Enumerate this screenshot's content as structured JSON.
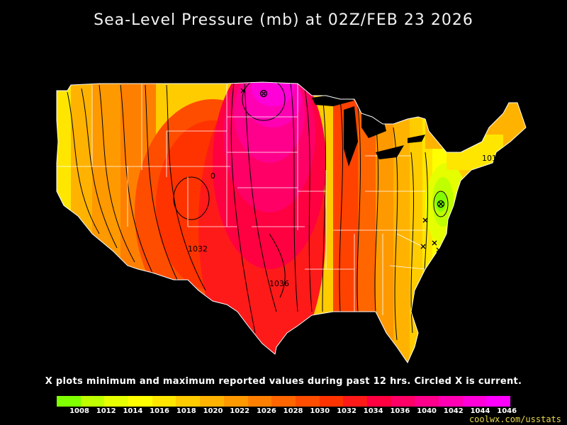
{
  "title": "Sea-Level Pressure (mb) at 02Z/FEB 23 2026",
  "note": "X plots minimum and maximum reported values during past 12 hrs. Circled X is current.",
  "credit": "coolwx.com/usstats",
  "scale": {
    "colors": [
      "#80ff00",
      "#bfff00",
      "#e6ff00",
      "#ffff00",
      "#ffe600",
      "#ffcc00",
      "#ffb300",
      "#ff9900",
      "#ff8000",
      "#ff6600",
      "#ff4d00",
      "#ff3300",
      "#ff1a1a",
      "#ff0040",
      "#ff0066",
      "#ff008c",
      "#ff00b3",
      "#ff00d9",
      "#ff00ff"
    ],
    "labels": [
      "1008",
      "1012",
      "1014",
      "1016",
      "1018",
      "1020",
      "1022",
      "1026",
      "1028",
      "1030",
      "1032",
      "1034",
      "1036",
      "1040",
      "1042",
      "1044",
      "1046"
    ]
  },
  "contour_labels": [
    {
      "text": "1032",
      "name": "contour-label-1032"
    },
    {
      "text": "1036",
      "name": "contour-label-1036"
    },
    {
      "text": "0",
      "name": "contour-label-0"
    },
    {
      "text": "101",
      "name": "contour-label-101"
    }
  ],
  "colors": {
    "background": "#000000",
    "title_text": "#f2f2f2",
    "credit_text": "#e8d84a",
    "borders": "#ffffff",
    "isobars": "#000000"
  }
}
